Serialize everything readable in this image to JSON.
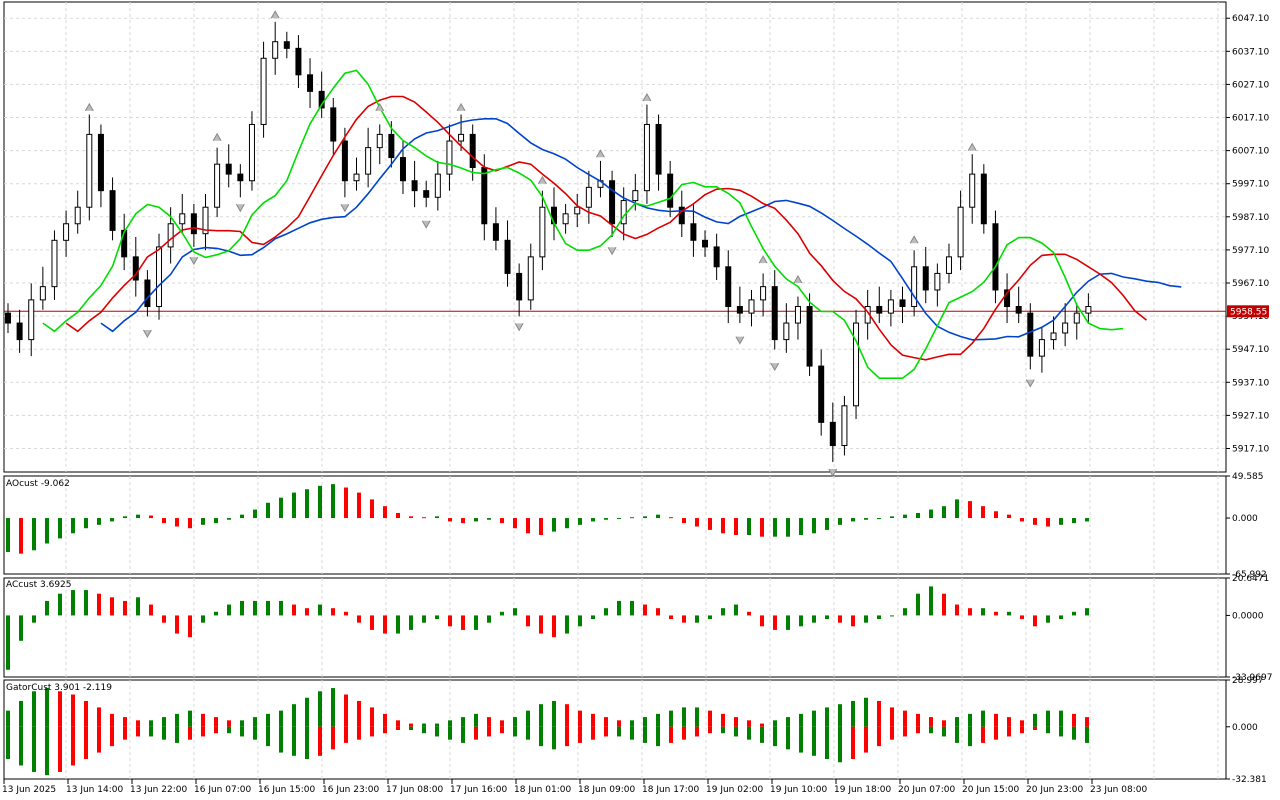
{
  "symbol_price": "5958.55",
  "main_pane": {
    "price_ticks": [
      "6047.10",
      "6037.10",
      "6027.10",
      "6017.10",
      "6007.10",
      "5997.10",
      "5987.10",
      "5977.10",
      "5967.10",
      "5957.10",
      "5947.10",
      "5937.10",
      "5927.10",
      "5917.10"
    ],
    "current_price": "5958.55"
  },
  "ao_pane": {
    "label": "AOcust -9.062",
    "ticks": [
      "49.585",
      "0.000",
      "-65.992"
    ]
  },
  "ac_pane": {
    "label": "ACcust 3.6925",
    "ticks": [
      "20.6471",
      "0.0000",
      "-33.9697"
    ]
  },
  "gator_pane": {
    "label": "GatorCust 3.901 -2.119",
    "ticks": [
      "28.997",
      "0.000",
      "-32.381"
    ]
  },
  "time_axis": [
    "13 Jun 2025",
    "13 Jun 14:00",
    "13 Jun 22:00",
    "16 Jun 07:00",
    "16 Jun 15:00",
    "16 Jun 23:00",
    "17 Jun 08:00",
    "17 Jun 16:00",
    "18 Jun 01:00",
    "18 Jun 09:00",
    "18 Jun 17:00",
    "19 Jun 02:00",
    "19 Jun 10:00",
    "19 Jun 18:00",
    "20 Jun 07:00",
    "20 Jun 15:00",
    "20 Jun 23:00",
    "23 Jun 08:00"
  ],
  "colors": {
    "up": "#008000",
    "down": "#ff0000",
    "jaw": "#0044cc",
    "teeth": "#dd0000",
    "lips": "#00dd00",
    "price_line": "#c00000",
    "grid": "#d8d8d8"
  },
  "chart_data": {
    "type": "candlestick",
    "y_range": [
      5910,
      6052
    ],
    "close_series_approx": [
      5955,
      5950,
      5962,
      5966,
      5980,
      5985,
      5990,
      6012,
      5995,
      5983,
      5975,
      5968,
      5960,
      5978,
      5985,
      5988,
      5982,
      5990,
      6003,
      6000,
      5998,
      6015,
      6035,
      6040,
      6038,
      6030,
      6025,
      6020,
      6010,
      5998,
      6000,
      6008,
      6012,
      6005,
      5998,
      5995,
      5993,
      6000,
      6010,
      6012,
      6002,
      5985,
      5980,
      5970,
      5962,
      5975,
      5990,
      5985,
      5988,
      5990,
      5996,
      5998,
      5985,
      5992,
      5995,
      6015,
      6000,
      5990,
      5985,
      5980,
      5978,
      5972,
      5960,
      5958,
      5962,
      5966,
      5950,
      5955,
      5960,
      5942,
      5925,
      5918,
      5930,
      5955,
      5960,
      5958,
      5962,
      5960,
      5972,
      5965,
      5970,
      5975,
      5990,
      6000,
      5985,
      5965,
      5960,
      5958,
      5945,
      5950,
      5952,
      5955,
      5958,
      5960
    ],
    "ao_values": [
      -40,
      -42,
      -38,
      -30,
      -24,
      -18,
      -12,
      -8,
      -4,
      2,
      4,
      3,
      -6,
      -10,
      -12,
      -8,
      -6,
      -2,
      4,
      10,
      18,
      24,
      30,
      34,
      38,
      40,
      36,
      30,
      22,
      14,
      6,
      2,
      1,
      2,
      -4,
      -6,
      -4,
      -2,
      -6,
      -12,
      -18,
      -20,
      -16,
      -12,
      -8,
      -4,
      -2,
      -1,
      1,
      2,
      4,
      1,
      -6,
      -10,
      -14,
      -18,
      -20,
      -20,
      -22,
      -22,
      -22,
      -20,
      -18,
      -14,
      -8,
      -4,
      -2,
      0,
      2,
      4,
      6,
      10,
      14,
      22,
      20,
      14,
      8,
      4,
      -4,
      -8,
      -10,
      -8,
      -6,
      -4
    ],
    "ac_values": [
      -30,
      -14,
      -4,
      8,
      12,
      14,
      14,
      12,
      10,
      8,
      10,
      6,
      -4,
      -10,
      -12,
      -4,
      2,
      6,
      8,
      8,
      8,
      8,
      6,
      4,
      6,
      4,
      2,
      -4,
      -8,
      -10,
      -10,
      -8,
      -4,
      -2,
      -6,
      -8,
      -8,
      -4,
      2,
      4,
      -6,
      -10,
      -12,
      -10,
      -6,
      -2,
      4,
      8,
      8,
      6,
      4,
      -2,
      -4,
      -4,
      -2,
      4,
      6,
      2,
      -6,
      -8,
      -8,
      -6,
      -4,
      -2,
      -4,
      -6,
      -4,
      -2,
      0,
      4,
      12,
      16,
      12,
      6,
      4,
      4,
      2,
      2,
      -2,
      -6,
      -4,
      -2,
      2,
      4
    ],
    "gator_upper": [
      10,
      16,
      22,
      24,
      22,
      20,
      16,
      12,
      8,
      6,
      4,
      4,
      6,
      8,
      10,
      8,
      6,
      4,
      4,
      6,
      8,
      10,
      14,
      18,
      22,
      24,
      20,
      16,
      12,
      8,
      4,
      2,
      2,
      2,
      4,
      6,
      8,
      6,
      4,
      6,
      10,
      14,
      16,
      14,
      10,
      8,
      6,
      4,
      4,
      6,
      8,
      10,
      12,
      12,
      10,
      8,
      6,
      4,
      2,
      4,
      6,
      8,
      10,
      12,
      14,
      16,
      18,
      16,
      12,
      10,
      8,
      6,
      4,
      6,
      8,
      10,
      8,
      6,
      4,
      8,
      10,
      10,
      8,
      6
    ],
    "gator_lower": [
      -20,
      -24,
      -28,
      -30,
      -28,
      -24,
      -20,
      -16,
      -12,
      -8,
      -6,
      -6,
      -8,
      -10,
      -8,
      -6,
      -4,
      -4,
      -6,
      -8,
      -12,
      -16,
      -18,
      -20,
      -18,
      -14,
      -10,
      -8,
      -6,
      -4,
      -2,
      -2,
      -4,
      -6,
      -8,
      -10,
      -8,
      -6,
      -4,
      -6,
      -8,
      -12,
      -14,
      -12,
      -10,
      -8,
      -6,
      -6,
      -8,
      -10,
      -12,
      -10,
      -8,
      -6,
      -4,
      -4,
      -6,
      -8,
      -10,
      -12,
      -14,
      -16,
      -18,
      -20,
      -22,
      -20,
      -16,
      -12,
      -8,
      -6,
      -4,
      -4,
      -6,
      -10,
      -12,
      -10,
      -8,
      -6,
      -4,
      -2,
      -4,
      -6,
      -8,
      -10
    ]
  }
}
